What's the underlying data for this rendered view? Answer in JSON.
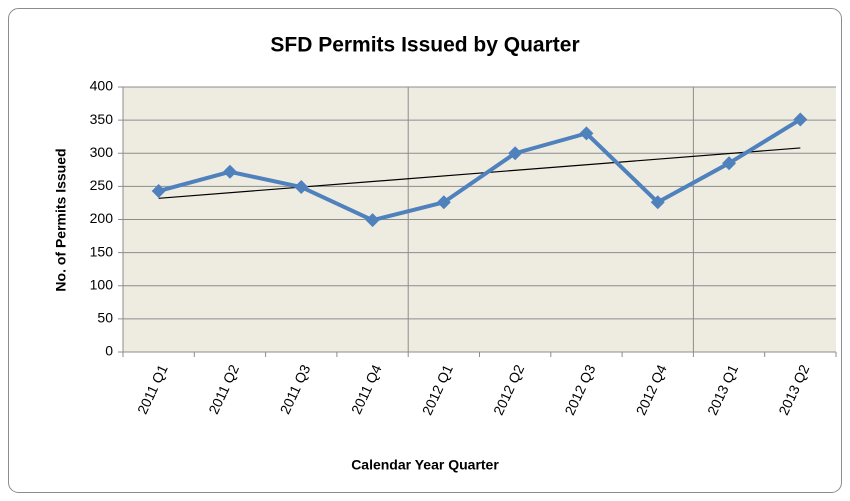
{
  "chart_data": {
    "type": "line",
    "title": "SFD Permits Issued by Quarter",
    "x_label": "Calendar Year Quarter",
    "y_label": "No. of Permits Issued",
    "categories": [
      "2011 Q1",
      "2011 Q2",
      "2011 Q3",
      "2011 Q4",
      "2012 Q1",
      "2012 Q2",
      "2012 Q3",
      "2012 Q4",
      "2013 Q1",
      "2013 Q2"
    ],
    "series": [
      {
        "color": "#4f81bd",
        "values": [
          243,
          272,
          249,
          199,
          226,
          300,
          330,
          226,
          285,
          351
        ]
      }
    ],
    "trendline": {
      "color": "#000000",
      "values": [
        232,
        308
      ]
    },
    "ylim": [
      0,
      400
    ],
    "yticks": [
      0,
      50,
      100,
      150,
      200,
      250,
      300,
      350,
      400
    ],
    "grid": true
  }
}
